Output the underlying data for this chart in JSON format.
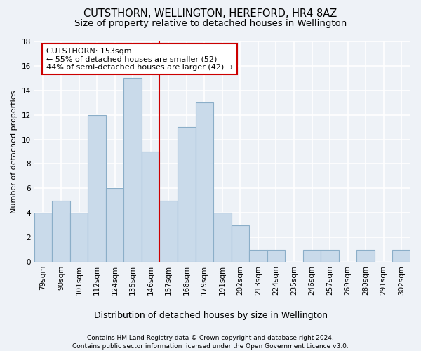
{
  "title1": "CUTSTHORN, WELLINGTON, HEREFORD, HR4 8AZ",
  "title2": "Size of property relative to detached houses in Wellington",
  "xlabel": "Distribution of detached houses by size in Wellington",
  "ylabel": "Number of detached properties",
  "categories": [
    "79sqm",
    "90sqm",
    "101sqm",
    "112sqm",
    "124sqm",
    "135sqm",
    "146sqm",
    "157sqm",
    "168sqm",
    "179sqm",
    "191sqm",
    "202sqm",
    "213sqm",
    "224sqm",
    "235sqm",
    "246sqm",
    "257sqm",
    "269sqm",
    "280sqm",
    "291sqm",
    "302sqm"
  ],
  "values": [
    4,
    5,
    4,
    12,
    6,
    15,
    9,
    5,
    11,
    13,
    4,
    3,
    1,
    1,
    0,
    1,
    1,
    0,
    1,
    0,
    1
  ],
  "bar_color": "#c9daea",
  "bar_edge_color": "#8baec8",
  "vline_color": "#cc0000",
  "annotation_text": "CUTSTHORN: 153sqm\n← 55% of detached houses are smaller (52)\n44% of semi-detached houses are larger (42) →",
  "annotation_box_color": "#ffffff",
  "annotation_box_edge": "#cc0000",
  "ylim": [
    0,
    18
  ],
  "yticks": [
    0,
    2,
    4,
    6,
    8,
    10,
    12,
    14,
    16,
    18
  ],
  "footer1": "Contains HM Land Registry data © Crown copyright and database right 2024.",
  "footer2": "Contains public sector information licensed under the Open Government Licence v3.0.",
  "background_color": "#eef2f7",
  "grid_color": "#ffffff",
  "title1_fontsize": 10.5,
  "title2_fontsize": 9.5,
  "xlabel_fontsize": 9,
  "ylabel_fontsize": 8,
  "tick_fontsize": 7.5,
  "footer_fontsize": 6.5,
  "annotation_fontsize": 8
}
